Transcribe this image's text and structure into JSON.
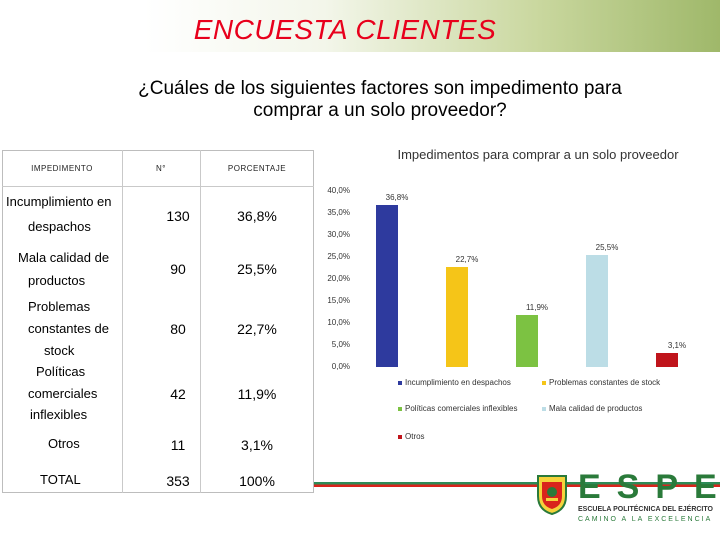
{
  "slide": {
    "title": "ENCUESTA CLIENTES",
    "question_line1": "¿Cuáles de los siguientes factores son impedimento para",
    "question_line2": "comprar a un solo proveedor?"
  },
  "table": {
    "headers": [
      "IMPEDIMENTO",
      "N°",
      "PORCENTAJE"
    ],
    "rows": [
      {
        "factor_lines": [
          "Incumplimiento en",
          "despachos"
        ],
        "count": "130",
        "percent": "36,8%"
      },
      {
        "factor_lines": [
          "Mala calidad de",
          "productos"
        ],
        "count": "90",
        "percent": "25,5%"
      },
      {
        "factor_lines": [
          "Problemas",
          "constantes de",
          "stock"
        ],
        "count": "80",
        "percent": "22,7%"
      },
      {
        "factor_lines": [
          "Políticas",
          "comerciales",
          "inflexibles"
        ],
        "count": "42",
        "percent": "11,9%"
      },
      {
        "factor_lines": [
          "Otros"
        ],
        "count": "11",
        "percent": "3,1%"
      }
    ],
    "total": {
      "label": "TOTAL",
      "count": "353",
      "percent": "100%"
    }
  },
  "chart_data": {
    "type": "bar",
    "title": "Impedimentos para comprar a un solo proveedor",
    "xlabel": "",
    "ylabel": "",
    "ylim": [
      0,
      40
    ],
    "y_ticks": [
      "0,0%",
      "5,0%",
      "10,0%",
      "15,0%",
      "20,0%",
      "25,0%",
      "30,0%",
      "35,0%",
      "40,0%"
    ],
    "grid": false,
    "legend_position": "bottom",
    "series": [
      {
        "name": "Incumplimiento en despachos",
        "value": 36.8,
        "label": "36,8%",
        "color": "#2e3a9e"
      },
      {
        "name": "Problemas constantes de stock",
        "value": 22.7,
        "label": "22,7%",
        "color": "#f5c518"
      },
      {
        "name": "Políticas comerciales inflexibles",
        "value": 11.9,
        "label": "11,9%",
        "color": "#7cc242"
      },
      {
        "name": "Mala calidad de productos",
        "value": 25.5,
        "label": "25,5%",
        "color": "#bcdde6"
      },
      {
        "name": "Otros",
        "value": 3.1,
        "label": "3,1%",
        "color": "#c0141b"
      }
    ]
  },
  "logo": {
    "letters": "ESPE",
    "school": "ESCUELA POLITÉCNICA DEL EJÉRCITO",
    "motto": "CAMINO A LA EXCELENCIA",
    "green": "#2a7a3a",
    "accent_red": "#d9241c"
  }
}
